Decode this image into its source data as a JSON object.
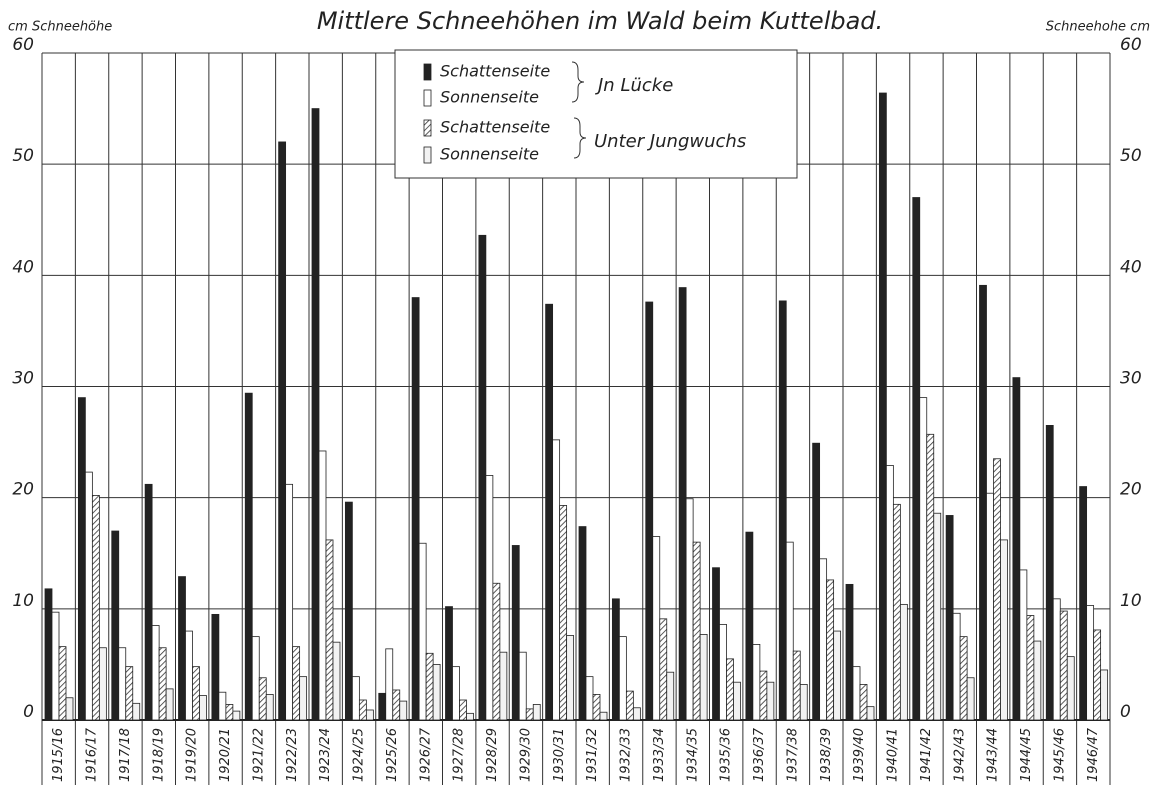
{
  "chart_data": {
    "type": "bar",
    "title": "Mittlere Schneehöhen im Wald beim Kuttelbad.",
    "y_label": "cm Schneehöhe",
    "y2_label": "Schneehohe cm",
    "categories": [
      "1915/16",
      "1916/17",
      "1917/18",
      "1918/19",
      "1919/20",
      "1920/21",
      "1921/22",
      "1922/23",
      "1923/24",
      "1924/25",
      "1925/26",
      "1926/27",
      "1927/28",
      "1928/29",
      "1929/30",
      "1930/31",
      "1931/32",
      "1932/33",
      "1933/34",
      "1934/35",
      "1935/36",
      "1936/37",
      "1937/38",
      "1938/39",
      "1939/40",
      "1940/41",
      "1941/42",
      "1942/43",
      "1943/44",
      "1944/45",
      "1945/46",
      "1946/47"
    ],
    "series": [
      {
        "name": "Schattenseite",
        "color": "#222222",
        "hatch": false,
        "values": [
          11.8,
          29.0,
          17.0,
          21.2,
          12.9,
          9.5,
          29.4,
          52.0,
          55.0,
          19.6,
          2.4,
          38.0,
          10.2,
          43.6,
          15.7,
          37.4,
          17.4,
          10.9,
          37.6,
          38.9,
          13.7,
          16.9,
          37.7,
          24.9,
          12.2,
          56.4,
          47.0,
          18.4,
          39.1,
          30.8,
          26.5,
          21.0
        ]
      },
      {
        "name": "Sonnenseite",
        "color": "#ffffff",
        "hatch": false,
        "values": [
          9.7,
          22.3,
          6.5,
          8.5,
          8.0,
          2.5,
          7.5,
          21.2,
          24.2,
          3.9,
          6.4,
          15.9,
          4.8,
          22.0,
          6.1,
          25.2,
          3.9,
          7.5,
          16.5,
          19.9,
          8.6,
          6.8,
          16.0,
          14.5,
          4.8,
          22.9,
          29.0,
          9.6,
          20.4,
          13.5,
          10.9,
          10.3
        ]
      },
      {
        "name": "Schattenseite",
        "color": "#555555",
        "hatch": true,
        "values": [
          6.6,
          20.2,
          4.8,
          6.5,
          4.8,
          1.4,
          3.8,
          6.6,
          16.2,
          1.8,
          2.7,
          6.0,
          1.8,
          12.3,
          1.0,
          19.3,
          2.3,
          2.6,
          9.1,
          16.0,
          5.5,
          4.4,
          6.2,
          12.6,
          3.2,
          19.4,
          25.7,
          7.5,
          23.5,
          9.4,
          9.8,
          8.1
        ]
      },
      {
        "name": "Sonnenseite",
        "color": "#f2f2f2",
        "hatch": false,
        "values": [
          2.0,
          6.5,
          1.5,
          2.8,
          2.2,
          0.8,
          2.3,
          3.9,
          7.0,
          0.9,
          1.7,
          5.0,
          0.6,
          6.1,
          1.4,
          7.6,
          0.7,
          1.1,
          4.3,
          7.7,
          3.4,
          3.4,
          3.2,
          8.0,
          1.2,
          10.4,
          18.6,
          3.8,
          16.2,
          7.1,
          5.7,
          4.5
        ]
      }
    ],
    "legend_groups": [
      "Jn Lücke",
      "Unter Jungwuchs"
    ],
    "ylim": [
      0,
      60
    ],
    "yticks": [
      0,
      10,
      20,
      30,
      40,
      50,
      60
    ],
    "y2lim": [
      0,
      60
    ],
    "y2ticks": [
      0,
      10,
      20,
      30,
      40,
      50,
      60
    ],
    "grid": true
  }
}
